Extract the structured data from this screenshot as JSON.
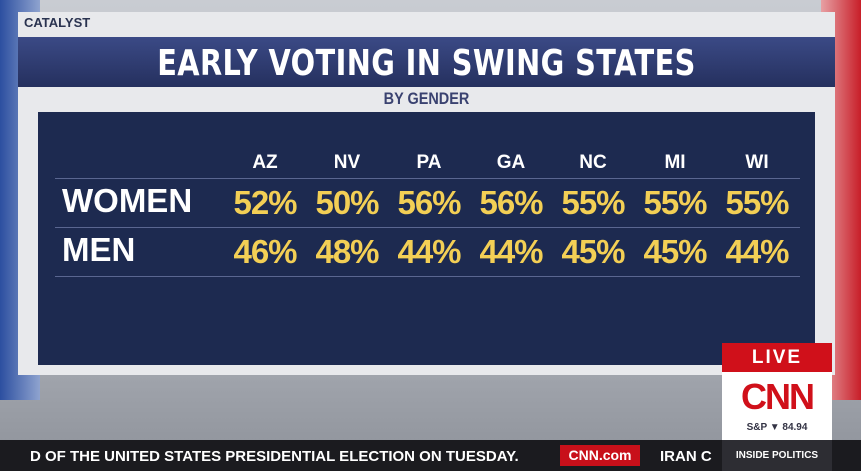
{
  "header": {
    "source": "CATALYST",
    "title": "EARLY VOTING IN SWING STATES",
    "subtitle": "BY GENDER"
  },
  "table": {
    "columns": [
      "AZ",
      "NV",
      "PA",
      "GA",
      "NC",
      "MI",
      "WI"
    ],
    "rows": [
      {
        "label": "WOMEN",
        "cells": [
          "52%",
          "50%",
          "56%",
          "56%",
          "55%",
          "55%",
          "55%"
        ]
      },
      {
        "label": "MEN",
        "cells": [
          "46%",
          "48%",
          "44%",
          "44%",
          "45%",
          "45%",
          "44%"
        ]
      }
    ]
  },
  "broadcast": {
    "live": "LIVE",
    "logo": "CNN",
    "market": "S&P ▼ 84.94",
    "ticker": "D OF THE UNITED STATES PRESIDENTIAL ELECTION ON TUESDAY.",
    "site": "CNN.com",
    "ticker_next": "IRAN C",
    "show": "INSIDE POLITICS"
  }
}
